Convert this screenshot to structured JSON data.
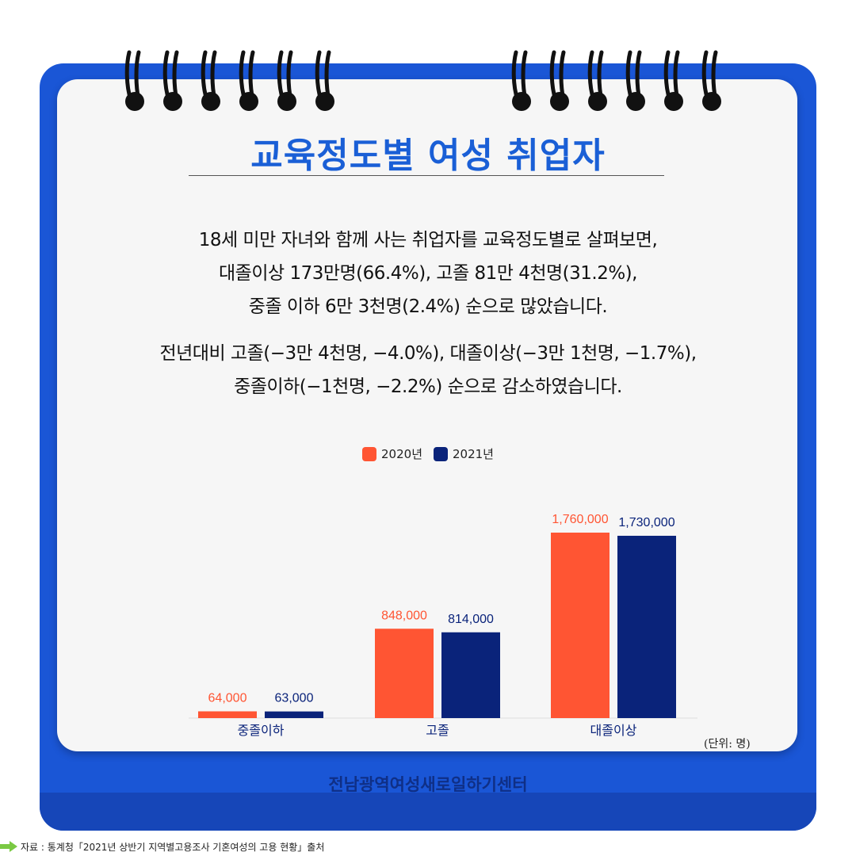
{
  "title": "교육정도별 여성 취업자",
  "description": {
    "p1": [
      "18세 미만 자녀와 함께 사는 취업자를 교육정도별로 살펴보면,",
      "대졸이상 173만명(66.4%), 고졸 81만 4천명(31.2%),",
      "중졸 이하 6만 3천명(2.4%) 순으로 많았습니다."
    ],
    "p2": [
      "전년대비 고졸(−3만 4천명, −4.0%), 대졸이상(−3만 1천명, −1.7%),",
      "중졸이하(−1천명, −2.2%) 순으로 감소하였습니다."
    ]
  },
  "chart_data": {
    "type": "bar",
    "categories": [
      "중졸이하",
      "고졸",
      "대졸이상"
    ],
    "series": [
      {
        "name": "2020년",
        "values": [
          64000,
          848000,
          1760000
        ],
        "color": "#ff5533"
      },
      {
        "name": "2021년",
        "values": [
          63000,
          814000,
          1730000
        ],
        "color": "#0a237a"
      }
    ],
    "data_labels": [
      [
        "64,000",
        "848,000",
        "1,760,000"
      ],
      [
        "63,000",
        "814,000",
        "1,730,000"
      ]
    ],
    "legend_position": "top-center",
    "grid": false,
    "ylim": [
      0,
      1760000
    ],
    "unit": "(단위: 명)"
  },
  "footer": {
    "organization": "전남광역여성새로일하기센터",
    "source": "자료 : 통계청「2021년 상반기 지역별고용조사 기혼여성의 고용 현황」출처"
  },
  "colors": {
    "brand_blue": "#1a56d6",
    "title_blue": "#1a5fd6",
    "series_2020": "#ff5533",
    "series_2021": "#0a237a"
  }
}
